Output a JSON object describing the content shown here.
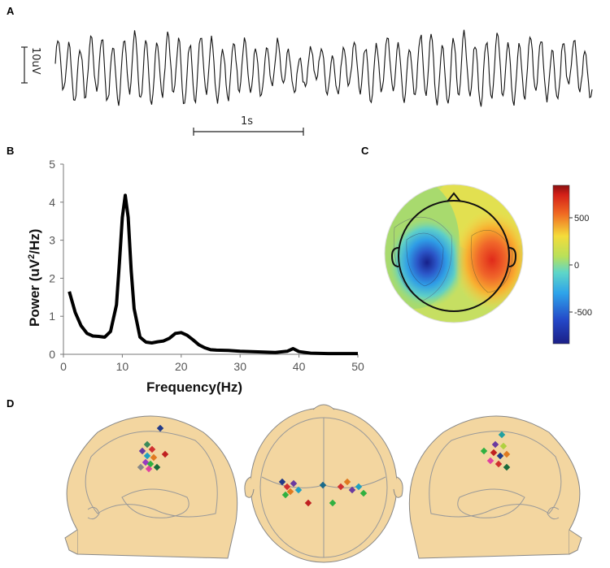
{
  "panels": {
    "A": {
      "letter": "A",
      "amplitude_scale_label": "10uV",
      "time_scale_label": "1s"
    },
    "B": {
      "letter": "B"
    },
    "C": {
      "letter": "C",
      "colorbar": {
        "ticks": [
          "500",
          "0",
          "-500"
        ],
        "range": [
          -800,
          800
        ]
      }
    },
    "D": {
      "letter": "D"
    }
  },
  "chart_data": [
    {
      "type": "line",
      "panel": "A",
      "series": [
        {
          "values": []
        }
      ],
      "note_scale_amplitude": "10uV",
      "note_scale_time": "1s"
    },
    {
      "type": "line",
      "panel": "B",
      "title": "",
      "xlabel": "Frequency(Hz)",
      "ylabel": "Power (uV^2/Hz)",
      "xlim": [
        0,
        50
      ],
      "ylim": [
        0,
        5
      ],
      "xticks": [
        "0",
        "10",
        "20",
        "30",
        "40",
        "50"
      ],
      "yticks": [
        "0",
        "1",
        "2",
        "3",
        "4",
        "5"
      ],
      "grid": false,
      "x": [
        1,
        2,
        3,
        4,
        5,
        6,
        7,
        8,
        9,
        9.5,
        10,
        10.5,
        11,
        11.5,
        12,
        13,
        14,
        15,
        16,
        17,
        18,
        19,
        20,
        21,
        22,
        23,
        24,
        25,
        26,
        28,
        30,
        32,
        34,
        36,
        38,
        39,
        40,
        42,
        45,
        48,
        50
      ],
      "values": [
        1.65,
        1.1,
        0.75,
        0.55,
        0.48,
        0.47,
        0.45,
        0.6,
        1.3,
        2.4,
        3.6,
        4.18,
        3.6,
        2.2,
        1.2,
        0.45,
        0.32,
        0.3,
        0.33,
        0.35,
        0.42,
        0.55,
        0.57,
        0.5,
        0.38,
        0.25,
        0.17,
        0.12,
        0.11,
        0.1,
        0.08,
        0.07,
        0.06,
        0.05,
        0.08,
        0.15,
        0.07,
        0.03,
        0.02,
        0.02,
        0.02
      ]
    }
  ]
}
